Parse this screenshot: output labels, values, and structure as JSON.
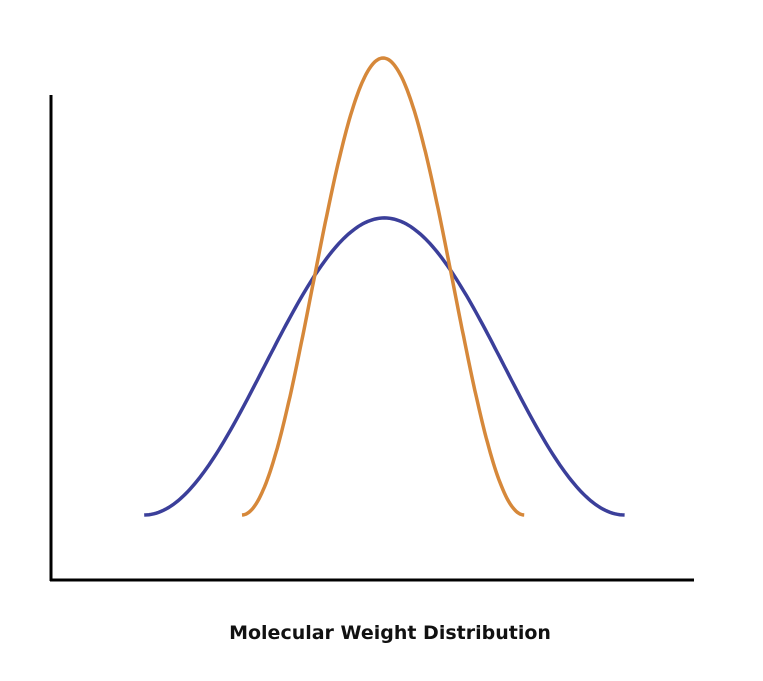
{
  "chart_data": {
    "type": "line",
    "title": "",
    "xlabel": "Molecular Weight Distribution",
    "ylabel": "",
    "xlim": [
      0,
      100
    ],
    "ylim": [
      0,
      1.15
    ],
    "grid": false,
    "legend": "none",
    "ticks": "none",
    "series": [
      {
        "color": "#3b3f9a",
        "shape": "bell",
        "x_start": 14.5,
        "x_peak": 51.8,
        "x_end": 89.2,
        "peak": 0.65
      },
      {
        "color": "#d6883a",
        "shape": "bell",
        "x_start": 29.7,
        "x_peak": 51.8,
        "x_end": 73.6,
        "peak": 1.0
      }
    ]
  }
}
